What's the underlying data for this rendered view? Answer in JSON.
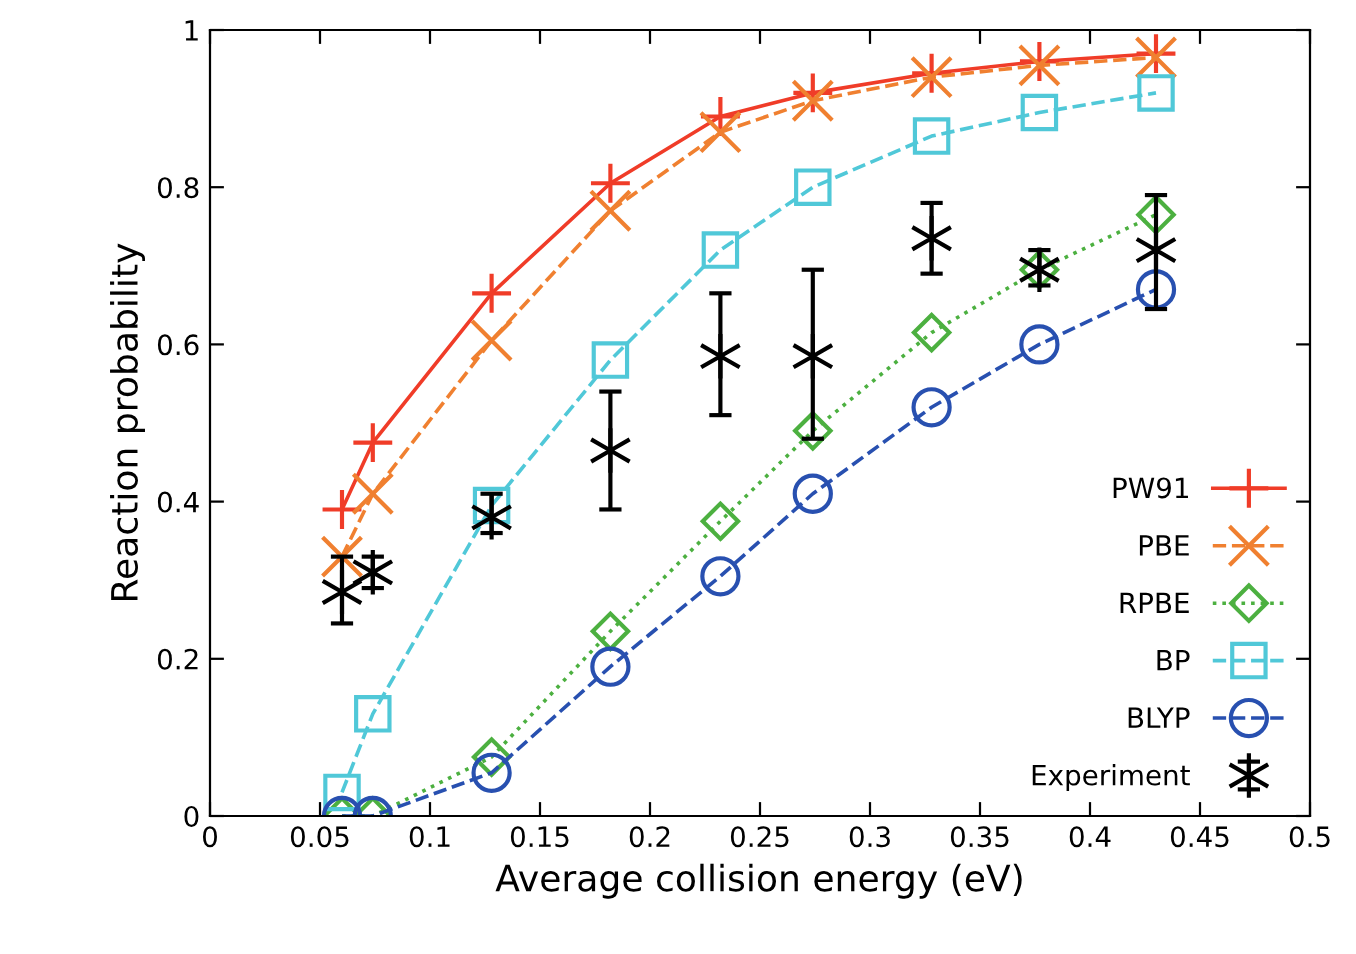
{
  "chart_data": {
    "type": "line",
    "xlabel": "Average collision energy (eV)",
    "ylabel": "Reaction probability",
    "xlim": [
      0,
      0.5
    ],
    "ylim": [
      0,
      1
    ],
    "xticks": [
      0,
      0.05,
      0.1,
      0.15,
      0.2,
      0.25,
      0.3,
      0.35,
      0.4,
      0.45,
      0.5
    ],
    "yticks": [
      0,
      0.2,
      0.4,
      0.6,
      0.8,
      1
    ],
    "grid": false,
    "legend": "bottom right",
    "x": [
      0.06,
      0.074,
      0.128,
      0.182,
      0.232,
      0.274,
      0.328,
      0.377,
      0.43
    ],
    "series": [
      {
        "name": "PW91",
        "color": "#f03c28",
        "marker": "plus",
        "line_style": "solid",
        "values": [
          0.39,
          0.475,
          0.665,
          0.805,
          0.89,
          0.92,
          0.945,
          0.96,
          0.97
        ]
      },
      {
        "name": "PBE",
        "color": "#f08030",
        "marker": "cross",
        "line_style": "dashed",
        "values": [
          0.33,
          0.41,
          0.605,
          0.77,
          0.87,
          0.91,
          0.94,
          0.955,
          0.965
        ]
      },
      {
        "name": "RPBE",
        "color": "#4cb040",
        "marker": "diamond",
        "line_style": "dotted",
        "values": [
          0,
          0,
          0.075,
          0.235,
          0.375,
          0.49,
          0.615,
          0.695,
          0.765
        ]
      },
      {
        "name": "BP",
        "color": "#50c8d8",
        "marker": "square",
        "line_style": "dashed",
        "values": [
          0.03,
          0.13,
          0.395,
          0.58,
          0.72,
          0.8,
          0.865,
          0.895,
          0.92
        ]
      },
      {
        "name": "BLYP",
        "color": "#2850b0",
        "marker": "circle",
        "line_style": "dashed",
        "values": [
          0,
          0,
          0.055,
          0.19,
          0.305,
          0.41,
          0.52,
          0.6,
          0.67
        ]
      },
      {
        "name": "Experiment",
        "type": "scatter",
        "color": "#000000",
        "marker": "cross",
        "values": [
          0.285,
          0.31,
          0.38,
          0.465,
          0.585,
          0.585,
          0.735,
          0.695,
          0.72
        ],
        "errors": [
          [
            0.245,
            0.33
          ],
          [
            0.29,
            0.33
          ],
          [
            0.36,
            0.41
          ],
          [
            0.39,
            0.54
          ],
          [
            0.51,
            0.665
          ],
          [
            0.48,
            0.695
          ],
          [
            0.69,
            0.78
          ],
          [
            0.675,
            0.72
          ],
          [
            0.645,
            0.79
          ]
        ]
      }
    ]
  }
}
